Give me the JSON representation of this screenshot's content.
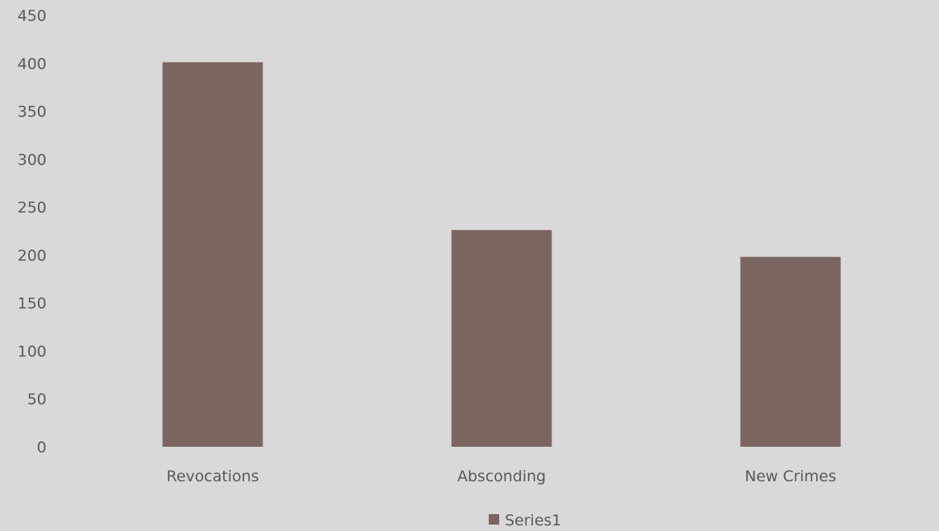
{
  "chart_data": {
    "type": "bar",
    "categories": [
      "Revocations",
      "Absconding",
      "New Crimes"
    ],
    "series": [
      {
        "name": "Series1",
        "values": [
          401,
          226,
          198
        ]
      }
    ],
    "title": "",
    "xlabel": "",
    "ylabel": "",
    "ylim": [
      0,
      450
    ],
    "yticks": [
      0,
      50,
      100,
      150,
      200,
      250,
      300,
      350,
      400,
      450
    ],
    "grid": false,
    "legend": "bottom",
    "colors": {
      "bar": "#7b6560",
      "background": "#d9d9d9",
      "text": "#595959"
    }
  }
}
